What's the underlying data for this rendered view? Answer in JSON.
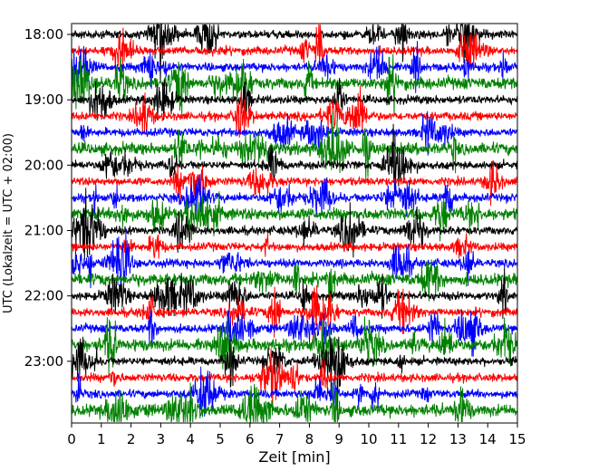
{
  "chart_data": {
    "type": "line",
    "subtype": "helicorder / seismogram drum plot",
    "xlabel": "Zeit  [min]",
    "ylabel": "UTC (Lokalzeit = UTC + 02:00)",
    "xlim": [
      0,
      15
    ],
    "x_ticks": [
      "0",
      "1",
      "2",
      "3",
      "4",
      "5",
      "6",
      "7",
      "8",
      "9",
      "10",
      "11",
      "12",
      "13",
      "14",
      "15"
    ],
    "y_ticks": [
      "18:00",
      "19:00",
      "20:00",
      "21:00",
      "22:00",
      "23:00"
    ],
    "time_range": [
      "18:00",
      "24:00"
    ],
    "trace_interval_minutes": 15,
    "trace_count": 24,
    "trace_colors": [
      "#000000",
      "#ff0000",
      "#0000ff",
      "#008000"
    ],
    "grid": false,
    "legend": "none"
  }
}
